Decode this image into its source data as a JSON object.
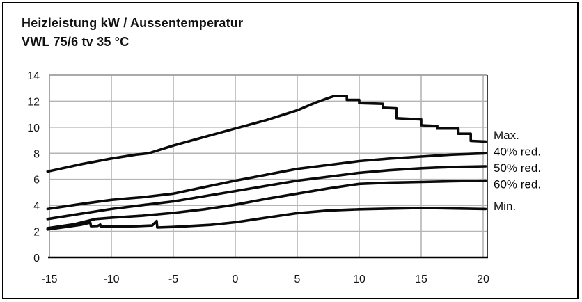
{
  "title": {
    "line1": "Heizleistung kW / Aussentemperatur",
    "line2": "VWL 75/6 tv 35 °C"
  },
  "chart_data": {
    "type": "line",
    "title": "Heizleistung kW / Aussentemperatur",
    "subtitle": "VWL 75/6 tv 35 °C",
    "xlabel": "",
    "ylabel": "",
    "xlim": [
      -15,
      20.3
    ],
    "ylim": [
      0,
      14
    ],
    "x_ticks": [
      -15,
      -10,
      -5,
      0,
      5,
      10,
      15,
      20
    ],
    "y_ticks": [
      0,
      2,
      4,
      6,
      8,
      10,
      12,
      14
    ],
    "grid": true,
    "legend_position": "right-of-plot",
    "colors": {
      "curve": "#0a0a0a",
      "grid": "#b5b5b5",
      "frame_side": "#9a9a9a",
      "axis": "#000000",
      "background": "#ffffff"
    },
    "series": [
      {
        "name": "Max.",
        "label_kw": 9.4,
        "points": [
          [
            -15.15,
            6.6
          ],
          [
            -12.5,
            7.15
          ],
          [
            -10,
            7.6
          ],
          [
            -8,
            7.9
          ],
          [
            -7,
            8.0
          ],
          [
            -5,
            8.6
          ],
          [
            -2.5,
            9.25
          ],
          [
            0,
            9.9
          ],
          [
            2.5,
            10.55
          ],
          [
            5,
            11.3
          ],
          [
            6.5,
            11.9
          ],
          [
            7.5,
            12.25
          ],
          [
            8,
            12.4
          ],
          [
            9,
            12.4
          ],
          [
            9,
            12.1
          ],
          [
            10,
            12.1
          ],
          [
            10,
            11.85
          ],
          [
            11.9,
            11.8
          ],
          [
            11.9,
            11.5
          ],
          [
            13,
            11.45
          ],
          [
            13,
            10.7
          ],
          [
            15,
            10.6
          ],
          [
            15,
            10.15
          ],
          [
            16.3,
            10.1
          ],
          [
            16.3,
            9.9
          ],
          [
            18,
            9.9
          ],
          [
            18,
            9.5
          ],
          [
            19,
            9.5
          ],
          [
            19,
            8.95
          ],
          [
            20.2,
            8.9
          ]
        ]
      },
      {
        "name": "40% red.",
        "label_kw": 8.15,
        "points": [
          [
            -15.15,
            3.72
          ],
          [
            -12.5,
            4.1
          ],
          [
            -10,
            4.42
          ],
          [
            -8.5,
            4.55
          ],
          [
            -7.5,
            4.62
          ],
          [
            -5,
            4.9
          ],
          [
            -2.5,
            5.4
          ],
          [
            0,
            5.9
          ],
          [
            2.5,
            6.35
          ],
          [
            5,
            6.8
          ],
          [
            7.5,
            7.1
          ],
          [
            10,
            7.4
          ],
          [
            12.5,
            7.6
          ],
          [
            15,
            7.75
          ],
          [
            17.5,
            7.9
          ],
          [
            20.2,
            8.0
          ]
        ]
      },
      {
        "name": "50% red.",
        "label_kw": 6.9,
        "points": [
          [
            -15.15,
            2.95
          ],
          [
            -12.5,
            3.35
          ],
          [
            -10,
            3.72
          ],
          [
            -7.5,
            4.02
          ],
          [
            -5,
            4.3
          ],
          [
            -2.5,
            4.7
          ],
          [
            0,
            5.1
          ],
          [
            2.5,
            5.5
          ],
          [
            5,
            5.9
          ],
          [
            7.5,
            6.2
          ],
          [
            10,
            6.5
          ],
          [
            12.5,
            6.7
          ],
          [
            15,
            6.85
          ],
          [
            17.5,
            6.95
          ],
          [
            20.2,
            7.0
          ]
        ]
      },
      {
        "name": "60% red.",
        "label_kw": 5.65,
        "points": [
          [
            -15.15,
            2.25
          ],
          [
            -13,
            2.55
          ],
          [
            -11.3,
            2.95
          ],
          [
            -10,
            3.05
          ],
          [
            -7.5,
            3.2
          ],
          [
            -5,
            3.42
          ],
          [
            -2.5,
            3.7
          ],
          [
            0,
            4.05
          ],
          [
            2.5,
            4.5
          ],
          [
            5,
            4.9
          ],
          [
            7.5,
            5.3
          ],
          [
            10,
            5.65
          ],
          [
            12.5,
            5.75
          ],
          [
            15,
            5.8
          ],
          [
            17.5,
            5.85
          ],
          [
            20.2,
            5.9
          ]
        ]
      },
      {
        "name": "Min.",
        "label_kw": 3.95,
        "points": [
          [
            -15.15,
            2.15
          ],
          [
            -14,
            2.3
          ],
          [
            -12.5,
            2.5
          ],
          [
            -11.7,
            2.67
          ],
          [
            -11.65,
            2.4
          ],
          [
            -11.1,
            2.42
          ],
          [
            -10.9,
            2.52
          ],
          [
            -10.85,
            2.36
          ],
          [
            -9.5,
            2.38
          ],
          [
            -8,
            2.4
          ],
          [
            -6.7,
            2.45
          ],
          [
            -6.35,
            2.8
          ],
          [
            -6.3,
            2.3
          ],
          [
            -5,
            2.34
          ],
          [
            -3.5,
            2.42
          ],
          [
            -2,
            2.5
          ],
          [
            0,
            2.7
          ],
          [
            2.5,
            3.05
          ],
          [
            5,
            3.4
          ],
          [
            7.5,
            3.6
          ],
          [
            10,
            3.7
          ],
          [
            12.5,
            3.75
          ],
          [
            15,
            3.8
          ],
          [
            17,
            3.77
          ],
          [
            20.2,
            3.72
          ]
        ]
      }
    ]
  }
}
